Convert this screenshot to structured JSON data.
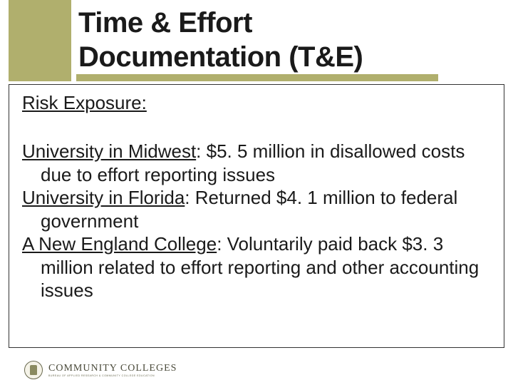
{
  "colors": {
    "olive": "#b0af6d",
    "text": "#1a1a1a",
    "border": "#333333",
    "background": "#ffffff"
  },
  "typography": {
    "title_fontsize": 40,
    "body_fontsize": 26,
    "title_weight": "bold"
  },
  "header": {
    "title_line1": "Time & Effort",
    "title_line2": "Documentation (T&E)"
  },
  "content": {
    "subtitle": "Risk Exposure:",
    "items": [
      {
        "lead": "University in Midwest",
        "rest": ":  $5. 5 million in disallowed costs due to effort reporting issues"
      },
      {
        "lead": "University in Florida",
        "rest": ":  Returned $4. 1 million to federal government"
      },
      {
        "lead": "A New England College",
        "rest": ":  Voluntarily paid back $3. 3 million related to effort reporting and other accounting issues"
      }
    ]
  },
  "footer": {
    "logo_main": "COMMUNITY COLLEGES",
    "logo_sub": "BUREAU OF APPLIED RESEARCH & COMMUNITY COLLEGE EDUCATION"
  }
}
